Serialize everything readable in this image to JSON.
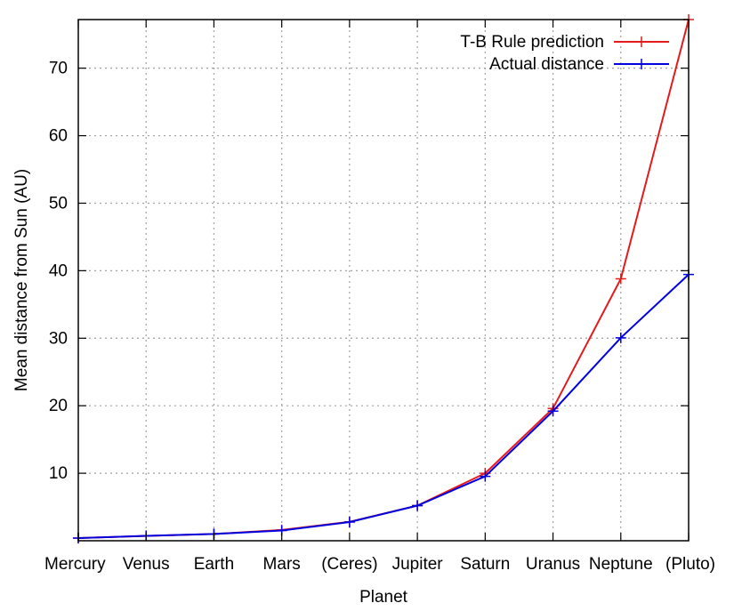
{
  "chart_data": {
    "type": "line",
    "title": "",
    "xlabel": "Planet",
    "ylabel": "Mean distance from Sun (AU)",
    "categories": [
      "Mercury",
      "Venus",
      "Earth",
      "Mars",
      "(Ceres)",
      "Jupiter",
      "Saturn",
      "Uranus",
      "Neptune",
      "(Pluto)"
    ],
    "ylim": [
      0,
      77.2
    ],
    "yticks": [
      10,
      20,
      30,
      40,
      50,
      60,
      70
    ],
    "grid": true,
    "legend_position": "top-right",
    "series": [
      {
        "name": "T-B Rule prediction",
        "color": "#e41a1c",
        "values": [
          0.4,
          0.7,
          1.0,
          1.6,
          2.8,
          5.2,
          10.0,
          19.6,
          38.8,
          77.2
        ]
      },
      {
        "name": "Actual distance",
        "color": "#0000e0",
        "values": [
          0.39,
          0.72,
          1.0,
          1.52,
          2.77,
          5.2,
          9.54,
          19.2,
          30.06,
          39.44
        ]
      }
    ]
  }
}
